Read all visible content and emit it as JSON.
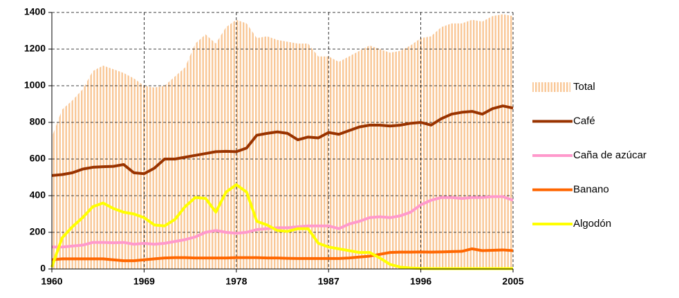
{
  "chart_data": {
    "type": "line",
    "x": [
      1960,
      1961,
      1962,
      1963,
      1964,
      1965,
      1966,
      1967,
      1968,
      1969,
      1970,
      1971,
      1972,
      1973,
      1974,
      1975,
      1976,
      1977,
      1978,
      1979,
      1980,
      1981,
      1982,
      1983,
      1984,
      1985,
      1986,
      1987,
      1988,
      1989,
      1990,
      1991,
      1992,
      1993,
      1994,
      1995,
      1996,
      1997,
      1998,
      1999,
      2000,
      2001,
      2002,
      2003,
      2004,
      2005
    ],
    "xlim": [
      1960,
      2005
    ],
    "xticks": [
      1960,
      1969,
      1978,
      1987,
      1996,
      2005
    ],
    "ylim": [
      0,
      1400
    ],
    "yticks": [
      0,
      200,
      400,
      600,
      800,
      1000,
      1200,
      1400
    ],
    "grid": true,
    "legend": "right",
    "series": [
      {
        "name": "Total",
        "kind": "area",
        "color": "#f9c796",
        "values": [
          720,
          870,
          920,
          980,
          1080,
          1110,
          1090,
          1070,
          1040,
          1000,
          990,
          1000,
          1050,
          1100,
          1230,
          1280,
          1230,
          1320,
          1360,
          1340,
          1260,
          1270,
          1250,
          1240,
          1230,
          1230,
          1160,
          1160,
          1130,
          1160,
          1190,
          1220,
          1200,
          1180,
          1190,
          1220,
          1260,
          1270,
          1320,
          1340,
          1340,
          1360,
          1350,
          1380,
          1390,
          1380
        ]
      },
      {
        "name": "Café",
        "kind": "line",
        "color": "#993300",
        "values": [
          510,
          515,
          525,
          545,
          555,
          558,
          560,
          570,
          525,
          520,
          550,
          600,
          600,
          610,
          620,
          630,
          640,
          642,
          640,
          660,
          730,
          740,
          748,
          740,
          705,
          720,
          715,
          745,
          735,
          755,
          775,
          785,
          785,
          780,
          785,
          795,
          800,
          785,
          820,
          845,
          855,
          860,
          845,
          875,
          890,
          878
        ]
      },
      {
        "name": "Caña de azúcar",
        "kind": "line",
        "color": "#ff99cc",
        "values": [
          120,
          120,
          125,
          130,
          145,
          145,
          143,
          145,
          135,
          140,
          135,
          140,
          150,
          160,
          175,
          200,
          210,
          200,
          195,
          200,
          215,
          220,
          225,
          225,
          230,
          235,
          235,
          235,
          220,
          245,
          260,
          280,
          285,
          280,
          290,
          310,
          350,
          375,
          390,
          390,
          385,
          390,
          390,
          395,
          395,
          375
        ]
      },
      {
        "name": "Banano",
        "kind": "line",
        "color": "#ff6600",
        "values": [
          50,
          55,
          55,
          55,
          55,
          55,
          50,
          45,
          45,
          50,
          55,
          60,
          62,
          62,
          60,
          60,
          60,
          60,
          62,
          62,
          62,
          60,
          60,
          58,
          57,
          57,
          57,
          57,
          57,
          60,
          65,
          70,
          80,
          90,
          92,
          92,
          93,
          92,
          93,
          95,
          96,
          110,
          100,
          102,
          104,
          100
        ]
      },
      {
        "name": "Algodón",
        "kind": "line",
        "color": "#ffff00",
        "values": [
          10,
          170,
          230,
          280,
          340,
          360,
          330,
          310,
          300,
          280,
          240,
          235,
          270,
          340,
          390,
          385,
          310,
          420,
          460,
          420,
          260,
          240,
          210,
          205,
          220,
          220,
          140,
          120,
          110,
          100,
          90,
          90,
          60,
          25,
          10,
          5,
          3,
          2,
          2,
          2,
          2,
          2,
          2,
          2,
          2,
          2
        ]
      }
    ]
  }
}
